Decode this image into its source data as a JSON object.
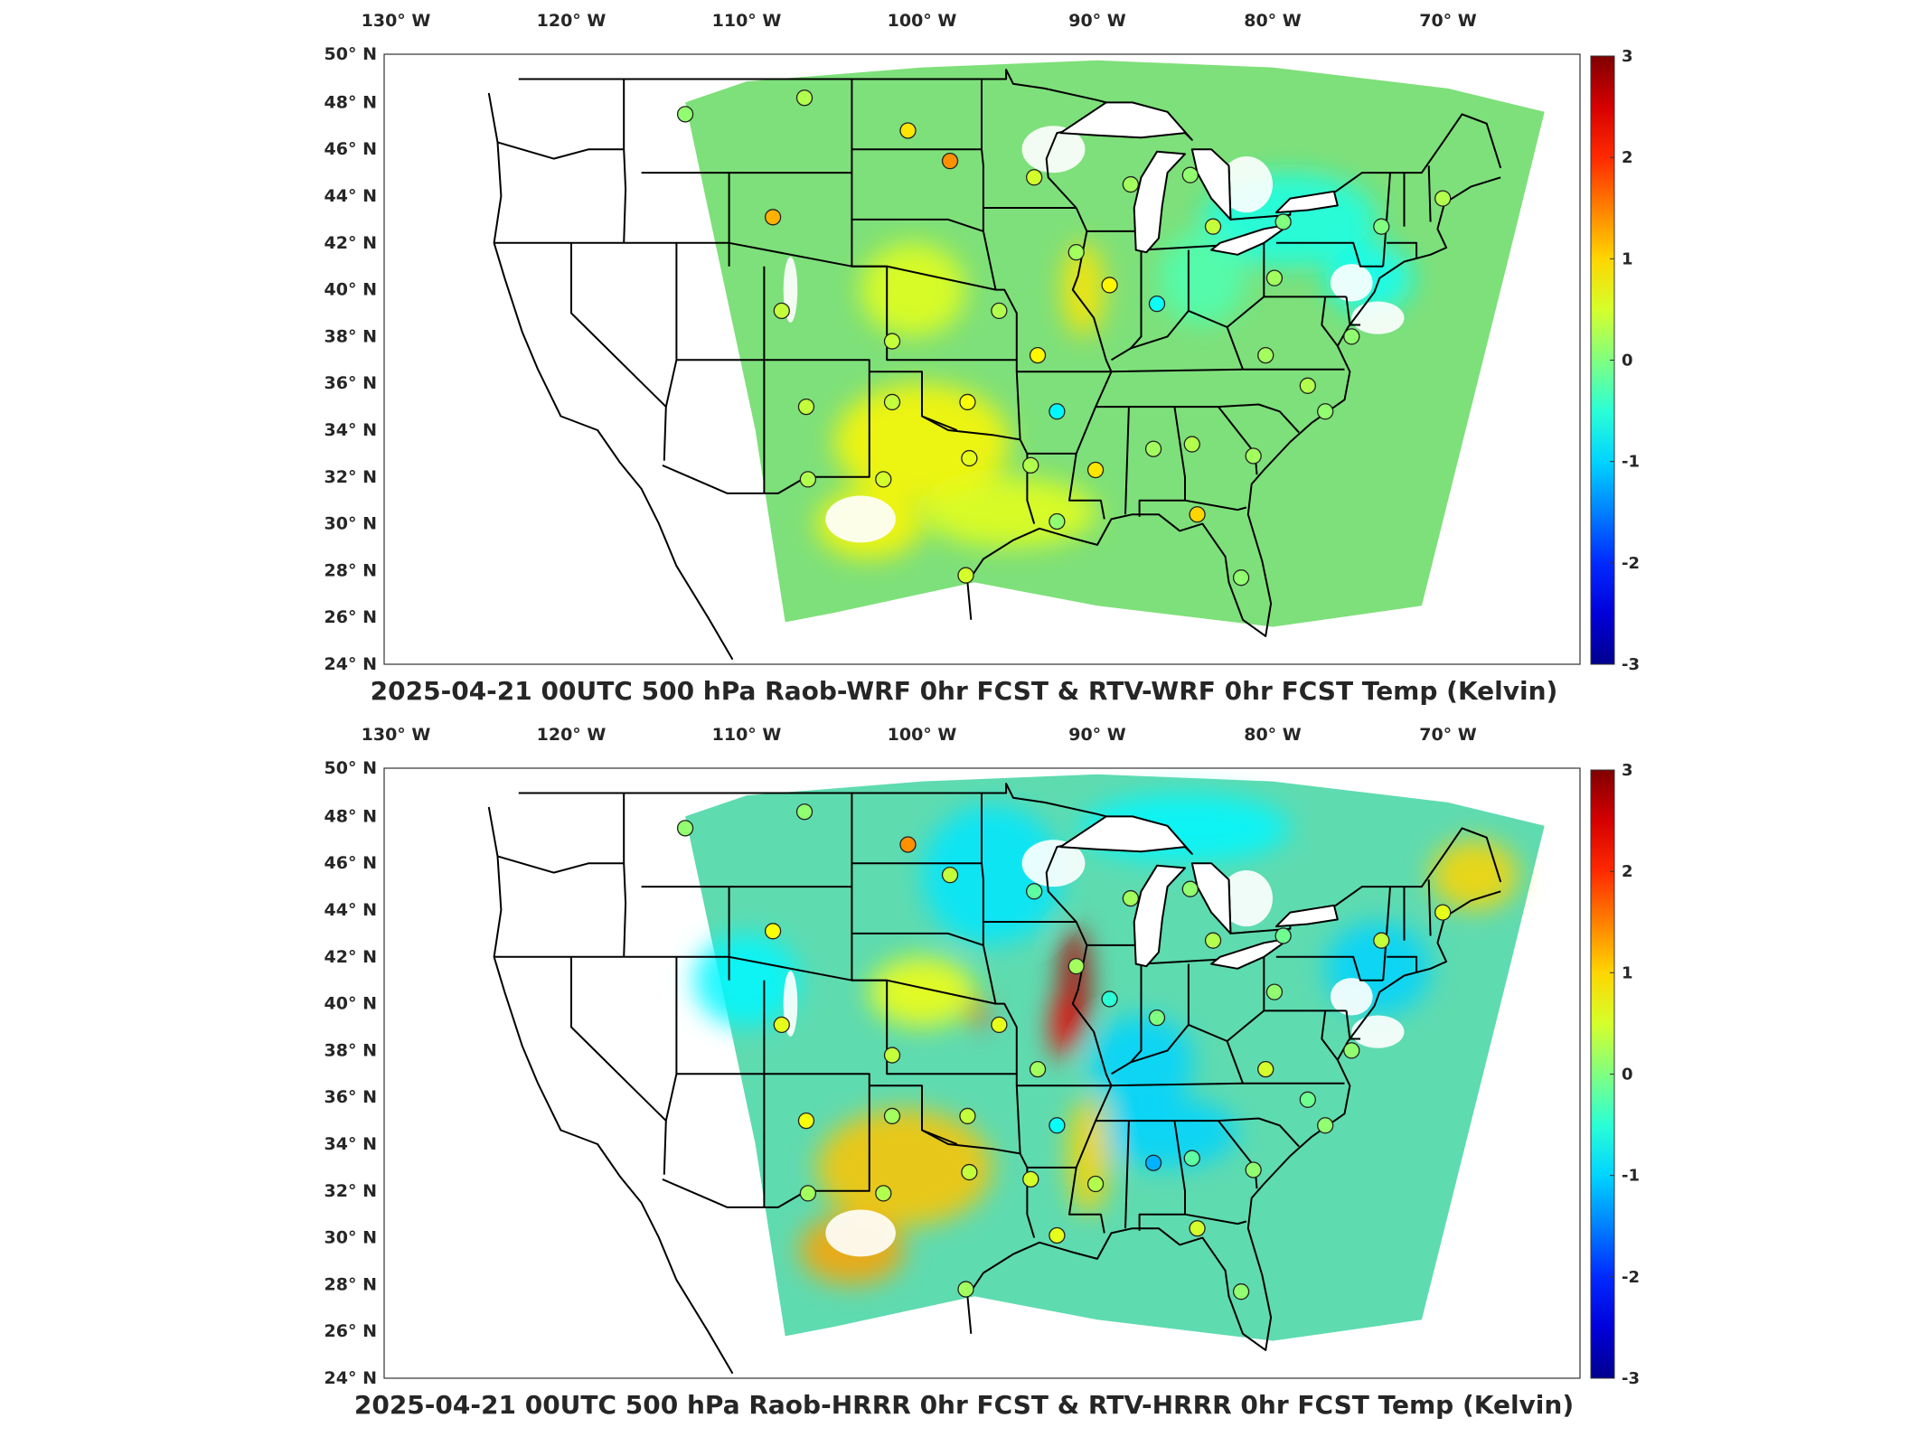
{
  "panels": [
    {
      "id": "wrf",
      "title": "2025-04-21 00UTC 500 hPa Raob-WRF 0hr FCST & RTV-WRF 0hr FCST Temp (Kelvin)",
      "lon_labels": [
        "130° W",
        "120° W",
        "110° W",
        "100° W",
        "90° W",
        "80° W",
        "70° W"
      ],
      "lat_labels": [
        "50° N",
        "48° N",
        "46° N",
        "44° N",
        "42° N",
        "40° N",
        "38° N",
        "36° N",
        "34° N",
        "32° N",
        "30° N",
        "28° N",
        "26° N",
        "24° N"
      ],
      "colorbar": {
        "min": -3,
        "max": 3,
        "ticks": [
          "3",
          "2",
          "1",
          "0",
          "-1",
          "-2",
          "-3"
        ]
      },
      "field_color": "#7ee07a",
      "stations": [
        {
          "lon": -113.5,
          "lat": 47.5,
          "value": 0.1
        },
        {
          "lon": -106.7,
          "lat": 48.2,
          "value": 0.3
        },
        {
          "lon": -100.8,
          "lat": 46.8,
          "value": 0.9
        },
        {
          "lon": -98.4,
          "lat": 45.5,
          "value": 1.4
        },
        {
          "lon": -93.6,
          "lat": 44.8,
          "value": 0.5
        },
        {
          "lon": -88.1,
          "lat": 44.5,
          "value": 0.2
        },
        {
          "lon": -84.7,
          "lat": 44.9,
          "value": 0.1
        },
        {
          "lon": -108.5,
          "lat": 43.1,
          "value": 1.2
        },
        {
          "lon": -91.2,
          "lat": 41.6,
          "value": 0.2
        },
        {
          "lon": -89.3,
          "lat": 40.2,
          "value": 0.8
        },
        {
          "lon": -86.6,
          "lat": 39.4,
          "value": -0.7
        },
        {
          "lon": -83.4,
          "lat": 42.7,
          "value": 0.4
        },
        {
          "lon": -79.4,
          "lat": 42.9,
          "value": 0.0
        },
        {
          "lon": -73.8,
          "lat": 42.7,
          "value": 0.0
        },
        {
          "lon": -70.3,
          "lat": 43.9,
          "value": 0.3
        },
        {
          "lon": -79.9,
          "lat": 40.5,
          "value": 0.2
        },
        {
          "lon": -108.0,
          "lat": 39.1,
          "value": 0.4
        },
        {
          "lon": -101.7,
          "lat": 37.8,
          "value": 0.4
        },
        {
          "lon": -95.6,
          "lat": 39.1,
          "value": 0.3
        },
        {
          "lon": -93.4,
          "lat": 37.2,
          "value": 0.8
        },
        {
          "lon": -80.4,
          "lat": 37.2,
          "value": 0.2
        },
        {
          "lon": -78.0,
          "lat": 35.9,
          "value": 0.3
        },
        {
          "lon": -75.5,
          "lat": 38.0,
          "value": 0.1
        },
        {
          "lon": -106.6,
          "lat": 35.0,
          "value": 0.4
        },
        {
          "lon": -101.7,
          "lat": 35.2,
          "value": 0.4
        },
        {
          "lon": -97.4,
          "lat": 35.2,
          "value": 0.7
        },
        {
          "lon": -92.3,
          "lat": 34.8,
          "value": -0.8
        },
        {
          "lon": -86.8,
          "lat": 33.2,
          "value": 0.2
        },
        {
          "lon": -84.6,
          "lat": 33.4,
          "value": 0.3
        },
        {
          "lon": -81.1,
          "lat": 32.9,
          "value": 0.2
        },
        {
          "lon": -77.0,
          "lat": 34.8,
          "value": 0.1
        },
        {
          "lon": -106.5,
          "lat": 31.9,
          "value": 0.3
        },
        {
          "lon": -102.2,
          "lat": 31.9,
          "value": 0.5
        },
        {
          "lon": -97.3,
          "lat": 32.8,
          "value": 0.6
        },
        {
          "lon": -93.8,
          "lat": 32.5,
          "value": 0.3
        },
        {
          "lon": -90.1,
          "lat": 32.3,
          "value": 0.9
        },
        {
          "lon": -92.3,
          "lat": 30.1,
          "value": 0.1
        },
        {
          "lon": -84.3,
          "lat": 30.4,
          "value": 1.0
        },
        {
          "lon": -97.5,
          "lat": 27.8,
          "value": 0.5
        },
        {
          "lon": -81.8,
          "lat": 27.7,
          "value": 0.1
        }
      ],
      "hotspots": [
        {
          "lon": -90.8,
          "lat": 40.0,
          "rx": 1.2,
          "ry": 2.0,
          "value": 0.9
        },
        {
          "lon": -100.0,
          "lat": 33.5,
          "rx": 5,
          "ry": 2.5,
          "value": 0.8
        },
        {
          "lon": -103.0,
          "lat": 30.0,
          "rx": 3,
          "ry": 1.5,
          "value": 0.8
        },
        {
          "lon": -79.0,
          "lat": 43.0,
          "rx": 5,
          "ry": 2,
          "value": -0.6
        },
        {
          "lon": -74.5,
          "lat": 40.5,
          "rx": 2.5,
          "ry": 1.5,
          "value": -0.7
        },
        {
          "lon": -84.0,
          "lat": 40.5,
          "rx": 2.5,
          "ry": 2,
          "value": -0.3
        },
        {
          "lon": -95.0,
          "lat": 30.5,
          "rx": 5,
          "ry": 1.5,
          "value": 0.6
        },
        {
          "lon": -100.5,
          "lat": 40.0,
          "rx": 3,
          "ry": 2,
          "value": 0.6
        }
      ]
    },
    {
      "id": "hrrr",
      "title": "2025-04-21 00UTC 500 hPa Raob-HRRR 0hr FCST & RTV-HRRR 0hr FCST Temp (Kelvin)",
      "lon_labels": [
        "130° W",
        "120° W",
        "110° W",
        "100° W",
        "90° W",
        "80° W",
        "70° W"
      ],
      "lat_labels": [
        "50° N",
        "48° N",
        "46° N",
        "44° N",
        "42° N",
        "40° N",
        "38° N",
        "36° N",
        "34° N",
        "32° N",
        "30° N",
        "28° N",
        "26° N",
        "24° N"
      ],
      "colorbar": {
        "min": -3,
        "max": 3,
        "ticks": [
          "3",
          "2",
          "1",
          "0",
          "-1",
          "-2",
          "-3"
        ]
      },
      "field_color": "#5fdbb0",
      "stations": [
        {
          "lon": -113.5,
          "lat": 47.5,
          "value": 0.1
        },
        {
          "lon": -106.7,
          "lat": 48.2,
          "value": 0.1
        },
        {
          "lon": -100.8,
          "lat": 46.8,
          "value": 1.4
        },
        {
          "lon": -98.4,
          "lat": 45.5,
          "value": 0.4
        },
        {
          "lon": -93.6,
          "lat": 44.8,
          "value": -0.2
        },
        {
          "lon": -88.1,
          "lat": 44.5,
          "value": 0.2
        },
        {
          "lon": -84.7,
          "lat": 44.9,
          "value": 0.1
        },
        {
          "lon": -108.5,
          "lat": 43.1,
          "value": 0.7
        },
        {
          "lon": -91.2,
          "lat": 41.6,
          "value": 0.2
        },
        {
          "lon": -89.3,
          "lat": 40.2,
          "value": -0.5
        },
        {
          "lon": -86.6,
          "lat": 39.4,
          "value": 0.0
        },
        {
          "lon": -83.4,
          "lat": 42.7,
          "value": 0.3
        },
        {
          "lon": -79.4,
          "lat": 42.9,
          "value": -0.1
        },
        {
          "lon": -73.8,
          "lat": 42.7,
          "value": 0.4
        },
        {
          "lon": -70.3,
          "lat": 43.9,
          "value": 0.6
        },
        {
          "lon": -79.9,
          "lat": 40.5,
          "value": 0.1
        },
        {
          "lon": -108.0,
          "lat": 39.1,
          "value": 0.6
        },
        {
          "lon": -101.7,
          "lat": 37.8,
          "value": 0.4
        },
        {
          "lon": -95.6,
          "lat": 39.1,
          "value": 0.6
        },
        {
          "lon": -93.4,
          "lat": 37.2,
          "value": 0.2
        },
        {
          "lon": -80.4,
          "lat": 37.2,
          "value": 0.5
        },
        {
          "lon": -78.0,
          "lat": 35.9,
          "value": -0.1
        },
        {
          "lon": -75.5,
          "lat": 38.0,
          "value": 0.1
        },
        {
          "lon": -106.6,
          "lat": 35.0,
          "value": 0.7
        },
        {
          "lon": -101.7,
          "lat": 35.2,
          "value": 0.2
        },
        {
          "lon": -97.4,
          "lat": 35.2,
          "value": 0.4
        },
        {
          "lon": -92.3,
          "lat": 34.8,
          "value": -0.7
        },
        {
          "lon": -86.8,
          "lat": 33.2,
          "value": -1.2
        },
        {
          "lon": -84.6,
          "lat": 33.4,
          "value": -0.2
        },
        {
          "lon": -81.1,
          "lat": 32.9,
          "value": 0.1
        },
        {
          "lon": -77.0,
          "lat": 34.8,
          "value": 0.1
        },
        {
          "lon": -106.5,
          "lat": 31.9,
          "value": 0.2
        },
        {
          "lon": -102.2,
          "lat": 31.9,
          "value": 0.3
        },
        {
          "lon": -97.3,
          "lat": 32.8,
          "value": 0.4
        },
        {
          "lon": -93.8,
          "lat": 32.5,
          "value": 0.5
        },
        {
          "lon": -90.1,
          "lat": 32.3,
          "value": 0.3
        },
        {
          "lon": -92.3,
          "lat": 30.1,
          "value": 0.6
        },
        {
          "lon": -84.3,
          "lat": 30.4,
          "value": 0.5
        },
        {
          "lon": -97.5,
          "lat": 27.8,
          "value": 0.2
        },
        {
          "lon": -81.8,
          "lat": 27.7,
          "value": 0.1
        }
      ],
      "hotspots": [
        {
          "lon": -91.3,
          "lat": 40.8,
          "rx": 0.9,
          "ry": 2.5,
          "value": 2.7
        },
        {
          "lon": -92.0,
          "lat": 39.0,
          "rx": 0.7,
          "ry": 1.4,
          "value": 2.3
        },
        {
          "lon": -96.8,
          "lat": 39.6,
          "rx": 0.5,
          "ry": 0.6,
          "value": 2.0
        },
        {
          "lon": -87.5,
          "lat": 37.5,
          "rx": 3,
          "ry": 2,
          "value": -1.0
        },
        {
          "lon": -86.0,
          "lat": 34.5,
          "rx": 4,
          "ry": 1.5,
          "value": -1.0
        },
        {
          "lon": -96.0,
          "lat": 45.5,
          "rx": 4,
          "ry": 3,
          "value": -0.9
        },
        {
          "lon": -85.0,
          "lat": 47.5,
          "rx": 6,
          "ry": 1.5,
          "value": -0.8
        },
        {
          "lon": -74.0,
          "lat": 41.5,
          "rx": 3,
          "ry": 2,
          "value": -1.0
        },
        {
          "lon": -101.0,
          "lat": 33.0,
          "rx": 5,
          "ry": 2.5,
          "value": 1.1
        },
        {
          "lon": -104.0,
          "lat": 29.5,
          "rx": 3,
          "ry": 1.5,
          "value": 1.3
        },
        {
          "lon": -90.5,
          "lat": 33.5,
          "rx": 1.2,
          "ry": 2.5,
          "value": 1.0
        },
        {
          "lon": -68.5,
          "lat": 45.5,
          "rx": 2.5,
          "ry": 1.5,
          "value": 1.0
        },
        {
          "lon": -110.0,
          "lat": 41.0,
          "rx": 3,
          "ry": 2,
          "value": -0.8
        },
        {
          "lon": -100.0,
          "lat": 40.5,
          "rx": 3,
          "ry": 1.5,
          "value": 0.7
        }
      ]
    }
  ]
}
